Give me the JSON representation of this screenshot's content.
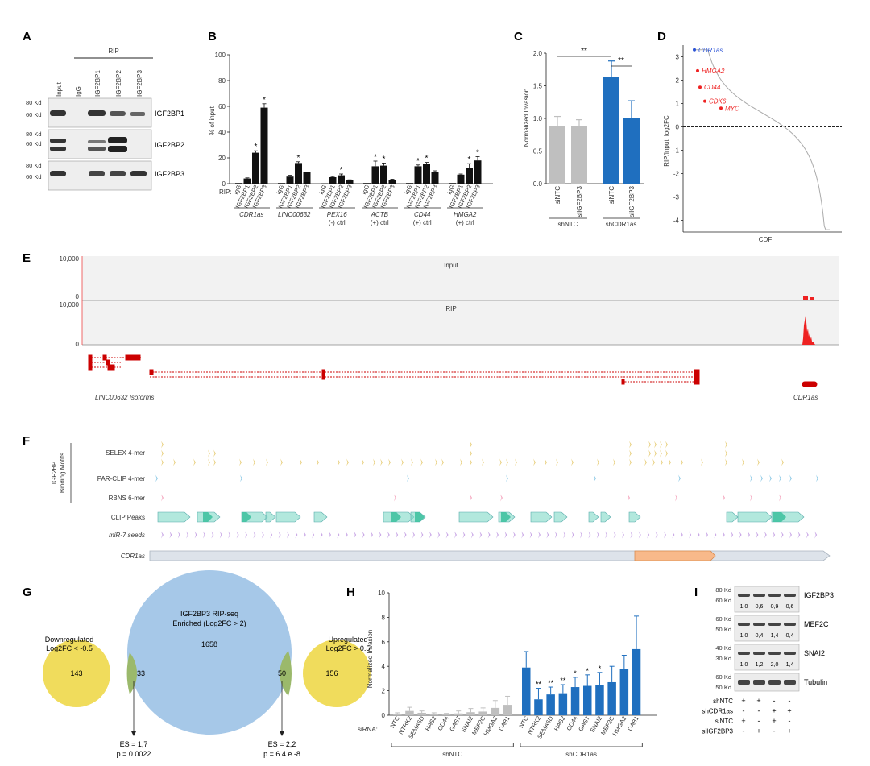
{
  "colors": {
    "gold": "#e8cf7e",
    "blue": "#8ecae6",
    "pink": "#f4a7bf",
    "teal": "#7fd8c7",
    "tealDark": "#3bbf9e",
    "purple": "#c9a8e6",
    "gray": "#bfbfbf",
    "barBlue": "#1f6fbf",
    "red": "#e22",
    "orange": "#f8b98a",
    "venn": "#a6c8e8",
    "vennSmall": "#f0dc5c"
  },
  "panels": {
    "A": "A",
    "B": "B",
    "C": "C",
    "D": "D",
    "E": "E",
    "F": "F",
    "G": "G",
    "H": "H",
    "I": "I"
  },
  "panelA": {
    "header": "RIP",
    "lanes": [
      "Input",
      "IgG",
      "IGF2BP1",
      "IGF2BP2",
      "IGF2BP3"
    ],
    "blots": [
      {
        "label": "IGF2BP1",
        "markers": [
          "80 Kd",
          "60 Kd"
        ]
      },
      {
        "label": "IGF2BP2",
        "markers": [
          "80 Kd",
          "60 Kd"
        ]
      },
      {
        "label": "IGF2BP3",
        "markers": [
          "80 Kd",
          "60 Kd"
        ]
      }
    ]
  },
  "chart_data": [
    {
      "id": "B",
      "type": "bar",
      "ylabel": "% of input",
      "ylim": [
        0,
        100
      ],
      "yticks": [
        "0",
        "20",
        "40",
        "60",
        "80",
        "100"
      ],
      "rip_label": "RIP:",
      "sublabels": [
        "IgG",
        "IGF2BP1",
        "IGF2BP2",
        "IGF2BP3"
      ],
      "groups": [
        {
          "name": "CDR1as",
          "ctrl": "",
          "values": [
            0.5,
            4,
            24,
            59
          ],
          "err": [
            0,
            0.5,
            1.5,
            3
          ],
          "sig": [
            false,
            false,
            true,
            true
          ]
        },
        {
          "name": "LINC00632",
          "ctrl": "",
          "values": [
            0.5,
            5.5,
            16,
            9
          ],
          "err": [
            0,
            1,
            1,
            0
          ],
          "sig": [
            false,
            false,
            true,
            false
          ]
        },
        {
          "name": "PEX16",
          "ctrl": "(-) ctrl",
          "values": [
            0.3,
            5,
            6.5,
            2.5
          ],
          "err": [
            0,
            0.5,
            1,
            0.5
          ],
          "sig": [
            false,
            false,
            true,
            false
          ]
        },
        {
          "name": "ACTB",
          "ctrl": "(+) ctrl",
          "values": [
            0.5,
            13.5,
            14,
            3
          ],
          "err": [
            0,
            4,
            2,
            0.5
          ],
          "sig": [
            false,
            true,
            true,
            false
          ]
        },
        {
          "name": "CD44",
          "ctrl": "(+) ctrl",
          "values": [
            0.5,
            13.5,
            15.5,
            9
          ],
          "err": [
            0,
            1,
            1,
            1
          ],
          "sig": [
            false,
            true,
            true,
            false
          ]
        },
        {
          "name": "HMGA2",
          "ctrl": "(+) ctrl",
          "values": [
            0.5,
            7,
            12.5,
            18
          ],
          "err": [
            0,
            0.5,
            3,
            3
          ],
          "sig": [
            false,
            false,
            true,
            true
          ]
        }
      ]
    },
    {
      "id": "C",
      "type": "bar",
      "ylabel": "Normalized Invasion",
      "ylim": [
        0,
        2.0
      ],
      "yticks": [
        "0.0",
        "0.5",
        "1.0",
        "1.5",
        "2.0"
      ],
      "categories": [
        "siNTC",
        "siIGF2BP3",
        "siNTC",
        "siIGF2BP3"
      ],
      "values": [
        0.88,
        0.88,
        1.63,
        1.0
      ],
      "err": [
        0.15,
        0.1,
        0.25,
        0.27
      ],
      "groups": [
        "shNTC",
        "shCDR1as"
      ],
      "sig": [
        "**",
        "**"
      ]
    },
    {
      "id": "D",
      "type": "line",
      "xlabel": "CDF",
      "ylabel": "RIP/Input, log2FC",
      "ylim": [
        -4.5,
        3.5
      ],
      "yticks": [
        "3",
        "2",
        "1",
        "0",
        "-1",
        "-2",
        "-3",
        "-4"
      ],
      "highlights": [
        {
          "label": "CDR1as",
          "value": 3.3,
          "color": "blue"
        },
        {
          "label": "HMGA2",
          "value": 2.4,
          "color": "red"
        },
        {
          "label": "CD44",
          "value": 1.7,
          "color": "red"
        },
        {
          "label": "CDK6",
          "value": 1.1,
          "color": "red"
        },
        {
          "label": "MYC",
          "value": 0.8,
          "color": "red"
        }
      ]
    },
    {
      "id": "H",
      "type": "bar",
      "ylabel": "Normalized Invasion",
      "ylim": [
        0,
        10
      ],
      "yticks": [
        "0",
        "2",
        "4",
        "6",
        "8",
        "10"
      ],
      "sirna_label": "siRNA:",
      "categories": [
        "NTC",
        "NTRK2",
        "SEMA6D",
        "HAS2",
        "CD44",
        "GAS7",
        "SNAI2",
        "MEF2C",
        "HMGA2",
        "DAB1"
      ],
      "series": [
        {
          "name": "shNTC",
          "values": [
            0.1,
            0.35,
            0.2,
            0.1,
            0.1,
            0.15,
            0.25,
            0.3,
            0.6,
            0.85
          ],
          "err": [
            0.1,
            0.3,
            0.15,
            0.1,
            0.05,
            0.2,
            0.3,
            0.3,
            0.6,
            0.7
          ]
        },
        {
          "name": "shCDR1as",
          "values": [
            3.9,
            1.3,
            1.7,
            1.8,
            2.3,
            2.4,
            2.5,
            2.7,
            3.8,
            5.4
          ],
          "err": [
            1.3,
            0.9,
            0.6,
            0.7,
            0.8,
            0.9,
            1.0,
            1.3,
            1.1,
            2.7
          ],
          "sig": [
            "",
            "**",
            "**",
            "**",
            "*",
            "*",
            "*",
            "",
            "",
            ""
          ]
        }
      ]
    }
  ],
  "panelE": {
    "ymax": "10,000",
    "ymin": "0",
    "input_label": "Input",
    "rip_label": "RIP",
    "isoforms_label": "LINC00632 Isoforms",
    "cdr1as_label": "CDR1as"
  },
  "panelF": {
    "bracket_label": "IGF2BP\nBinding Motifs",
    "bracket_line1": "IGF2BP",
    "bracket_line2": "Binding Motifs",
    "tracks": [
      "SELEX 4-mer",
      "PAR-CLIP 4-mer",
      "RBNS 6-mer",
      "CLIP Peaks",
      "miR-7 seeds",
      "CDR1as"
    ]
  },
  "panelG": {
    "big_title": "IGF2BP3 RIP-seq",
    "big_sub": "Enriched (Log2FC > 2)",
    "big_count": "1658",
    "left_title": "Downregulated",
    "left_sub": "Log2FC < -0.5",
    "left_only": "143",
    "left_overlap": "33",
    "right_title": "Upregulated",
    "right_sub": "Log2FC > 0.5",
    "right_only": "156",
    "right_overlap": "50",
    "left_es": "ES = 1,7",
    "left_p": "p = 0.0022",
    "right_es": "ES = 2,2",
    "right_p": "p = 6.4 e -8"
  },
  "panelI": {
    "blots": [
      {
        "label": "IGF2BP3",
        "markers": [
          "80 Kd",
          "60 Kd"
        ],
        "quant": [
          "1,0",
          "0,6",
          "0,9",
          "0,6"
        ]
      },
      {
        "label": "MEF2C",
        "markers": [
          "60 Kd",
          "50 Kd"
        ],
        "quant": [
          "1,0",
          "0,4",
          "1,4",
          "0,4"
        ]
      },
      {
        "label": "SNAI2",
        "markers": [
          "40 Kd",
          "30 Kd"
        ],
        "quant": [
          "1,0",
          "1,2",
          "2,0",
          "1,4"
        ]
      },
      {
        "label": "Tubulin",
        "markers": [
          "60 Kd",
          "50 Kd"
        ],
        "quant": []
      }
    ],
    "conditions": [
      {
        "name": "shNTC",
        "signs": [
          "+",
          "+",
          "-",
          "-"
        ]
      },
      {
        "name": "shCDR1as",
        "signs": [
          "-",
          "-",
          "+",
          "+"
        ]
      },
      {
        "name": "siNTC",
        "signs": [
          "+",
          "-",
          "+",
          "-"
        ]
      },
      {
        "name": "siIGF2BP3",
        "signs": [
          "-",
          "+",
          "-",
          "+"
        ]
      }
    ]
  }
}
